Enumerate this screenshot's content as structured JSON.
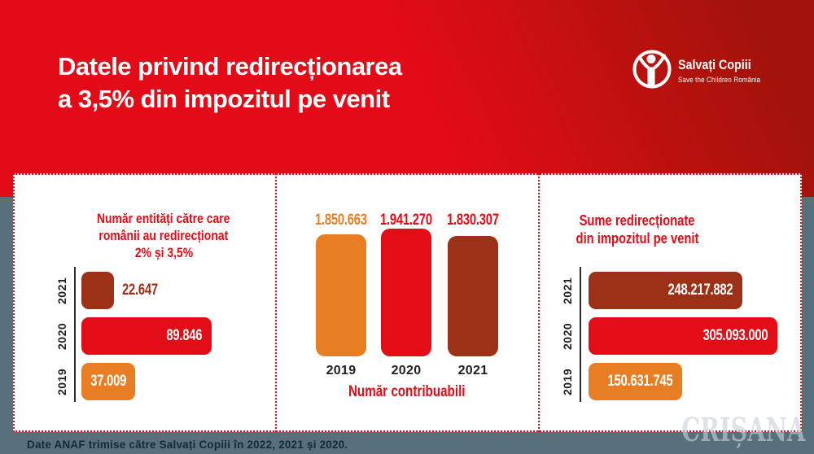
{
  "header": {
    "title_lines": [
      "Datele privind redirecționarea",
      "a 3,5% din impozitul pe venit"
    ],
    "logo": {
      "name": "Salvați Copiii",
      "subtitle": "Save the Children România"
    }
  },
  "chart_data": [
    {
      "type": "bar",
      "orientation": "horizontal",
      "title": "Număr entități către care românii au redirecționat 2% și 3,5%",
      "title_lines": [
        "Număr entități către care",
        "românii au redirecționat",
        "2% și 3,5%"
      ],
      "categories": [
        "2021",
        "2020",
        "2019"
      ],
      "values": [
        22647,
        89846,
        37009
      ],
      "value_labels": [
        "22.647",
        "89.846",
        "37.009"
      ],
      "bar_colors": [
        "#9C3118",
        "#E30D18",
        "#E87E24"
      ],
      "xlim": [
        0,
        89846
      ],
      "grid": false,
      "legend": "none"
    },
    {
      "type": "bar",
      "orientation": "vertical",
      "title": "Număr contribuabili",
      "categories": [
        "2019",
        "2020",
        "2021"
      ],
      "values": [
        1850663,
        1941270,
        1830307
      ],
      "value_labels": [
        "1.850.663",
        "1.941.270",
        "1.830.307"
      ],
      "value_label_colors": [
        "#E87E24",
        "#E30B17",
        "#E30B17"
      ],
      "bar_colors": [
        "#E87E24",
        "#E30D18",
        "#9C3118"
      ],
      "ylim": [
        0,
        1941270
      ],
      "grid": false,
      "legend": "none"
    },
    {
      "type": "bar",
      "orientation": "horizontal",
      "title": "Sume redirecționate din impozitul pe venit",
      "title_lines": [
        "Sume redirecționate",
        "din impozitul pe venit"
      ],
      "categories": [
        "2021",
        "2020",
        "2019"
      ],
      "values": [
        248217882,
        305093000,
        150631745
      ],
      "value_labels": [
        "248.217.882",
        "305.093.000",
        "150.631.745"
      ],
      "bar_colors": [
        "#9C3118",
        "#E30D18",
        "#E87E24"
      ],
      "xlim": [
        0,
        305093000
      ],
      "grid": false,
      "legend": "none"
    }
  ],
  "footer": {
    "source": "Date ANAF trimise către Salvați Copiii în 2022, 2021 și 2020."
  },
  "watermark": "CRIȘANA",
  "colors": {
    "header_red": "#E30B17",
    "header_dark_red": "#A21309",
    "bar_orange": "#E87E24",
    "bar_red": "#E30D18",
    "bar_dark": "#9C3118",
    "background_gray": "#56707C",
    "panel_white": "#FFFFFF",
    "footer_text": "#16283A"
  }
}
